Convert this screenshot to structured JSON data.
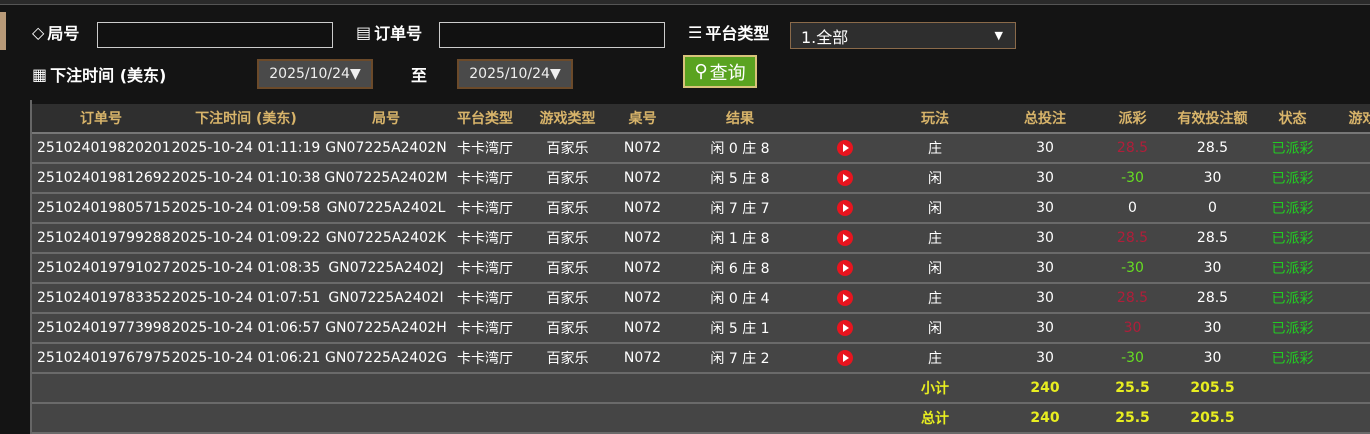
{
  "filters": {
    "round_label": "局号",
    "round_value": "",
    "order_label": "订单号",
    "order_value": "",
    "platform_label": "平台类型",
    "platform_value": "1.全部",
    "time_label": "下注时间 (美东)",
    "date_from": "2025/10/24▼",
    "to_label": "至",
    "date_to": "2025/10/24▼",
    "query_label": "查询"
  },
  "table": {
    "headers": [
      "订单号",
      "下注时间 (美东)",
      "局号",
      "平台类型",
      "游戏类型",
      "桌号",
      "结果",
      "",
      "玩法",
      "总投注",
      "派彩",
      "有效投注额",
      "状态",
      "游戏"
    ],
    "rows": [
      {
        "order": "251024019820201",
        "time": "2025-10-24 01:11:19",
        "round": "GN07225A2402N",
        "platform": "卡卡湾厅",
        "game": "百家乐",
        "table": "N072",
        "result": "闲 0 庄 8",
        "play": "庄",
        "bet": "30",
        "payout": "28.5",
        "payout_type": "red",
        "valid": "28.5",
        "status": "已派彩"
      },
      {
        "order": "251024019812692",
        "time": "2025-10-24 01:10:38",
        "round": "GN07225A2402M",
        "platform": "卡卡湾厅",
        "game": "百家乐",
        "table": "N072",
        "result": "闲 5 庄 8",
        "play": "闲",
        "bet": "30",
        "payout": "-30",
        "payout_type": "grn",
        "valid": "30",
        "status": "已派彩"
      },
      {
        "order": "251024019805715",
        "time": "2025-10-24 01:09:58",
        "round": "GN07225A2402L",
        "platform": "卡卡湾厅",
        "game": "百家乐",
        "table": "N072",
        "result": "闲 7 庄 7",
        "play": "闲",
        "bet": "30",
        "payout": "0",
        "payout_type": "",
        "valid": "0",
        "status": "已派彩"
      },
      {
        "order": "251024019799288",
        "time": "2025-10-24 01:09:22",
        "round": "GN07225A2402K",
        "platform": "卡卡湾厅",
        "game": "百家乐",
        "table": "N072",
        "result": "闲 1 庄 8",
        "play": "庄",
        "bet": "30",
        "payout": "28.5",
        "payout_type": "red",
        "valid": "28.5",
        "status": "已派彩"
      },
      {
        "order": "251024019791027",
        "time": "2025-10-24 01:08:35",
        "round": "GN07225A2402J",
        "platform": "卡卡湾厅",
        "game": "百家乐",
        "table": "N072",
        "result": "闲 6 庄 8",
        "play": "闲",
        "bet": "30",
        "payout": "-30",
        "payout_type": "grn",
        "valid": "30",
        "status": "已派彩"
      },
      {
        "order": "251024019783352",
        "time": "2025-10-24 01:07:51",
        "round": "GN07225A2402I",
        "platform": "卡卡湾厅",
        "game": "百家乐",
        "table": "N072",
        "result": "闲 0 庄 4",
        "play": "庄",
        "bet": "30",
        "payout": "28.5",
        "payout_type": "red",
        "valid": "28.5",
        "status": "已派彩"
      },
      {
        "order": "251024019773998",
        "time": "2025-10-24 01:06:57",
        "round": "GN07225A2402H",
        "platform": "卡卡湾厅",
        "game": "百家乐",
        "table": "N072",
        "result": "闲 5 庄 1",
        "play": "闲",
        "bet": "30",
        "payout": "30",
        "payout_type": "red",
        "valid": "30",
        "status": "已派彩"
      },
      {
        "order": "251024019767975",
        "time": "2025-10-24 01:06:21",
        "round": "GN07225A2402G",
        "platform": "卡卡湾厅",
        "game": "百家乐",
        "table": "N072",
        "result": "闲 7 庄 2",
        "play": "庄",
        "bet": "30",
        "payout": "-30",
        "payout_type": "grn",
        "valid": "30",
        "status": "已派彩"
      }
    ],
    "subtotal": {
      "label": "小计",
      "bet": "240",
      "payout": "25.5",
      "valid": "205.5"
    },
    "total": {
      "label": "总计",
      "bet": "240",
      "payout": "25.5",
      "valid": "205.5"
    }
  },
  "colors": {
    "header_text": "#d8b46a",
    "status": "#22cc22",
    "win": "#b01e3a",
    "loss": "#66dd22",
    "totals": "#e8ee20",
    "query_button": "#5aa320"
  }
}
